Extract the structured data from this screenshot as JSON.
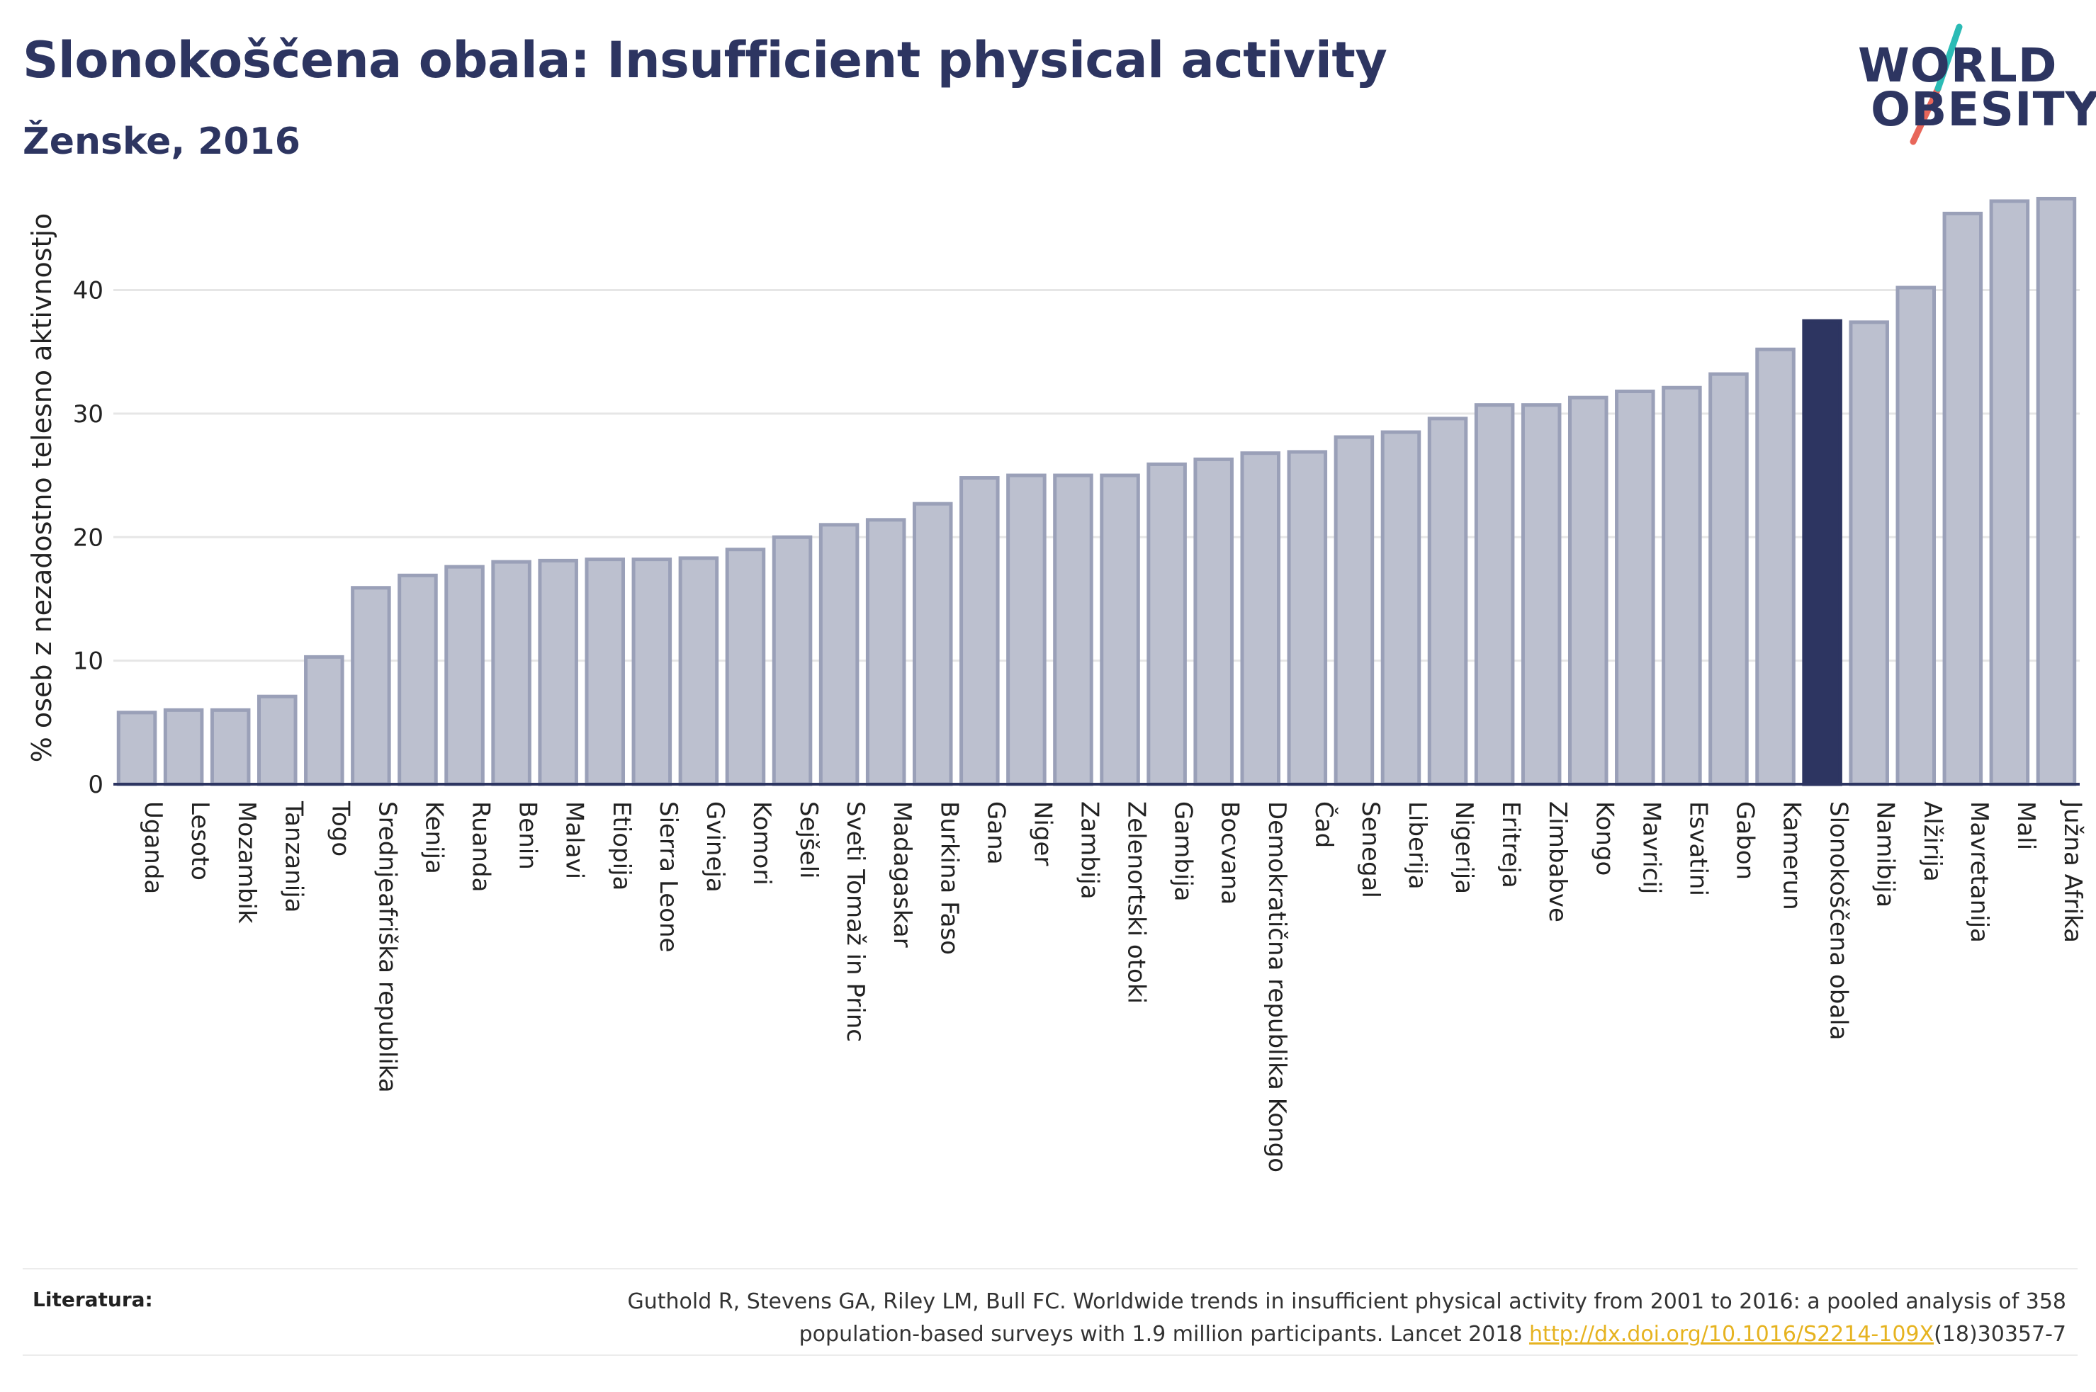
{
  "header": {
    "title": "Slonokoščena obala: Insufficient physical activity",
    "subtitle": "Ženske, 2016"
  },
  "logo": {
    "line1": "WORLD",
    "line2": "OBESITY",
    "icon": "world-obesity-logo",
    "colors": {
      "text": "#2d3561",
      "slash_teal": "#2bbbb5",
      "slash_red": "#e8665a"
    }
  },
  "colors": {
    "bar": "#bcc0cf",
    "bar_stroke": "#9aa0b8",
    "highlight": "#2d3561",
    "axis": "#2d3561",
    "grid": "#e6e6e6",
    "title": "#2d3561"
  },
  "chart_data": {
    "type": "bar",
    "ylabel": "% oseb z nezadostno telesno aktivnostjo",
    "xlabel": "",
    "ylim": [
      0,
      48
    ],
    "yticks": [
      0,
      10,
      20,
      30,
      40
    ],
    "grid": true,
    "highlight": "Slonokoščena obala",
    "categories": [
      "Uganda",
      "Lesoto",
      "Mozambik",
      "Tanzanija",
      "Togo",
      "Srednjeafriška republika",
      "Kenija",
      "Ruanda",
      "Benin",
      "Malavi",
      "Etiopija",
      "Sierra Leone",
      "Gvineja",
      "Komori",
      "Sejšeli",
      "Sveti Tomaž in Princ",
      "Madagaskar",
      "Burkina Faso",
      "Gana",
      "Niger",
      "Zambija",
      "Zelenortski otoki",
      "Gambija",
      "Bocvana",
      "Demokratična republika Kongo",
      "Čad",
      "Senegal",
      "Liberija",
      "Nigerija",
      "Eritreja",
      "Zimbabve",
      "Kongo",
      "Mavricij",
      "Esvatini",
      "Gabon",
      "Kamerun",
      "Slonokoščena obala",
      "Namibija",
      "Alžirija",
      "Mavretanija",
      "Mali",
      "Južna Afrika"
    ],
    "values": [
      5.8,
      6.0,
      6.0,
      7.1,
      10.3,
      15.9,
      16.9,
      17.6,
      18.0,
      18.1,
      18.2,
      18.2,
      18.3,
      19.0,
      20.0,
      21.0,
      21.4,
      22.7,
      24.8,
      25.0,
      25.0,
      25.0,
      25.9,
      26.3,
      26.8,
      26.9,
      28.1,
      28.5,
      29.6,
      30.7,
      30.7,
      31.3,
      31.8,
      32.1,
      33.2,
      35.2,
      37.5,
      37.4,
      40.2,
      46.2,
      47.2,
      47.4
    ]
  },
  "footer": {
    "label": "Literatura:",
    "line1": "Guthold R, Stevens GA, Riley LM, Bull FC. Worldwide trends in insufficient physical activity from 2001 to 2016: a pooled analysis of 358",
    "line2_prefix": "population-based surveys with 1.9 million participants. Lancet 2018 ",
    "link": "http://dx.doi.org/10.1016/S2214-109X",
    "line2_suffix": "(18)30357-7"
  }
}
